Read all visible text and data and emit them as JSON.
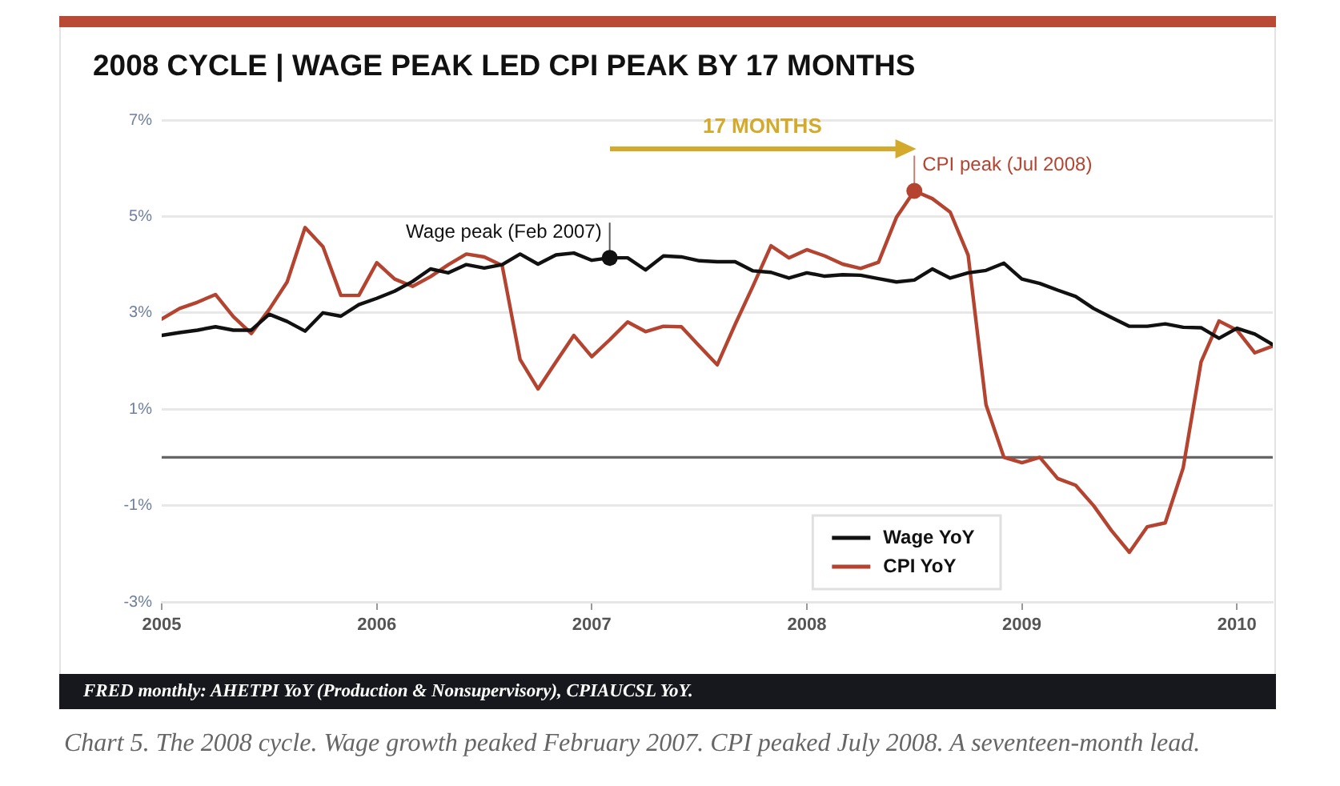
{
  "chart_data": {
    "type": "line",
    "title": "2008 CYCLE | WAGE PEAK LED CPI PEAK BY 17 MONTHS",
    "x": [
      "2005-01",
      "2005-02",
      "2005-03",
      "2005-04",
      "2005-05",
      "2005-06",
      "2005-07",
      "2005-08",
      "2005-09",
      "2005-10",
      "2005-11",
      "2005-12",
      "2006-01",
      "2006-02",
      "2006-03",
      "2006-04",
      "2006-05",
      "2006-06",
      "2006-07",
      "2006-08",
      "2006-09",
      "2006-10",
      "2006-11",
      "2006-12",
      "2007-01",
      "2007-02",
      "2007-03",
      "2007-04",
      "2007-05",
      "2007-06",
      "2007-07",
      "2007-08",
      "2007-09",
      "2007-10",
      "2007-11",
      "2007-12",
      "2008-01",
      "2008-02",
      "2008-03",
      "2008-04",
      "2008-05",
      "2008-06",
      "2008-07",
      "2008-08",
      "2008-09",
      "2008-10",
      "2008-11",
      "2008-12",
      "2009-01",
      "2009-02",
      "2009-03",
      "2009-04",
      "2009-05",
      "2009-06",
      "2009-07",
      "2009-08",
      "2009-09",
      "2009-10",
      "2009-11",
      "2009-12",
      "2010-01",
      "2010-02",
      "2010-03"
    ],
    "series": [
      {
        "name": "Wage YoY",
        "color": "#111111",
        "values": [
          2.53,
          2.59,
          2.64,
          2.71,
          2.64,
          2.64,
          2.97,
          2.82,
          2.62,
          3.0,
          2.93,
          3.17,
          3.3,
          3.45,
          3.65,
          3.91,
          3.83,
          4.0,
          3.93,
          4.0,
          4.22,
          4.01,
          4.2,
          4.24,
          4.09,
          4.14,
          4.14,
          3.89,
          4.18,
          4.16,
          4.08,
          4.06,
          4.06,
          3.87,
          3.84,
          3.72,
          3.83,
          3.76,
          3.79,
          3.78,
          3.71,
          3.64,
          3.68,
          3.91,
          3.72,
          3.83,
          3.88,
          4.03,
          3.7,
          3.61,
          3.47,
          3.34,
          3.09,
          2.9,
          2.72,
          2.72,
          2.77,
          2.7,
          2.69,
          2.47,
          2.68,
          2.56,
          2.34
        ]
      },
      {
        "name": "CPI YoY",
        "color": "#b4432f",
        "values": [
          2.87,
          3.09,
          3.22,
          3.38,
          2.92,
          2.57,
          3.07,
          3.64,
          4.77,
          4.37,
          3.36,
          3.36,
          4.04,
          3.7,
          3.55,
          3.75,
          4.0,
          4.22,
          4.16,
          3.98,
          2.03,
          1.42,
          1.98,
          2.53,
          2.09,
          2.44,
          2.81,
          2.61,
          2.72,
          2.71,
          2.31,
          1.92,
          2.76,
          3.56,
          4.39,
          4.14,
          4.31,
          4.18,
          4.01,
          3.92,
          4.05,
          4.98,
          5.53,
          5.37,
          5.09,
          4.2,
          1.09,
          0.0,
          -0.11,
          0.0,
          -0.44,
          -0.58,
          -1.0,
          -1.52,
          -1.97,
          -1.44,
          -1.36,
          -0.22,
          1.98,
          2.83,
          2.64,
          2.17,
          2.31
        ]
      }
    ],
    "xlim": [
      "2005-01",
      "2010-03"
    ],
    "xticks": [
      "2005",
      "2006",
      "2007",
      "2008",
      "2009",
      "2010"
    ],
    "ylim": [
      -3,
      7
    ],
    "yticks": [
      {
        "value": -3,
        "label": "-3%"
      },
      {
        "value": -1,
        "label": "-1%"
      },
      {
        "value": 1,
        "label": "1%"
      },
      {
        "value": 3,
        "label": "3%"
      },
      {
        "value": 5,
        "label": "5%"
      },
      {
        "value": 7,
        "label": "7%"
      }
    ],
    "grid": "y",
    "legend": "bottom right",
    "ref_lines": [
      {
        "axis": "y",
        "value": 0,
        "color": "#666666"
      }
    ],
    "annotations": [
      "17 MONTHS",
      {
        "text": "Wage peak (Feb 2007)",
        "x": "2007-02",
        "y": 4.14
      },
      {
        "text": "CPI peak (Jul 2008)",
        "x": "2008-07",
        "y": 5.53
      },
      "FRED monthly: AHETPI YoY (Production & Nonsupervisory), CPIAUCSL YoY.",
      "Chart 5. The 2008 cycle. Wage growth peaked February 2007. CPI peaked July 2008. A seventeen-month lead."
    ]
  }
}
